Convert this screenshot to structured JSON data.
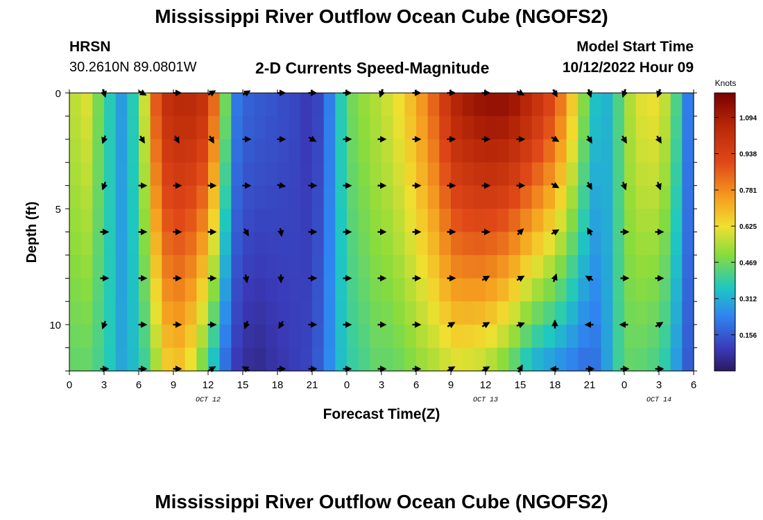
{
  "header": {
    "title": "Mississippi River Outflow Ocean Cube (NGOFS2)",
    "station_name": "HRSN",
    "station_coords": "30.2610N  89.0801W",
    "subtitle": "2-D Currents Speed-Magnitude",
    "model_start_label": "Model Start Time",
    "model_start_value": "10/12/2022 Hour 09"
  },
  "footer": {
    "title": "Mississippi River Outflow Ocean Cube (NGOFS2)"
  },
  "chart_data": {
    "type": "heatmap",
    "title": "2-D Currents Speed-Magnitude",
    "xlabel": "Forecast Time(Z)",
    "ylabel": "Depth (ft)",
    "x_range_hours": [
      0,
      54
    ],
    "y_range_ft": [
      0,
      12
    ],
    "y_reversed": true,
    "x_ticks": [
      "0",
      "3",
      "6",
      "9",
      "12",
      "15",
      "18",
      "21",
      "0",
      "3",
      "6",
      "9",
      "12",
      "15",
      "18",
      "21",
      "0",
      "3",
      "6"
    ],
    "y_ticks": [
      "0",
      "5",
      "10"
    ],
    "date_labels": [
      {
        "text": "OCT 12",
        "hour": 12
      },
      {
        "text": "OCT 13",
        "hour": 36
      },
      {
        "text": "OCT 14",
        "hour": 51
      }
    ],
    "colorbar": {
      "label": "Knots",
      "min": 0,
      "max": 1.2,
      "ticks": [
        "1.094",
        "0.938",
        "0.781",
        "0.625",
        "0.469",
        "0.312",
        "0.156"
      ],
      "tick_values": [
        1.094,
        0.938,
        0.781,
        0.625,
        0.469,
        0.312,
        0.156
      ]
    },
    "speed_profile_hours": [
      0,
      1.5,
      3,
      4.5,
      6,
      7,
      8,
      9,
      10.5,
      12,
      13,
      14,
      15,
      16.5,
      18,
      19.5,
      21,
      22,
      23,
      24,
      25,
      26.5,
      28,
      30,
      32,
      33,
      34,
      36,
      38,
      40,
      42,
      44,
      45,
      46,
      47,
      48,
      49,
      50.5,
      52,
      53,
      54
    ],
    "speed_profile_knots_surface": [
      0.55,
      0.6,
      0.42,
      0.28,
      0.42,
      0.75,
      1.0,
      1.05,
      1.05,
      1.0,
      0.7,
      0.25,
      0.18,
      0.16,
      0.14,
      0.12,
      0.08,
      0.15,
      0.3,
      0.45,
      0.5,
      0.55,
      0.6,
      0.72,
      0.9,
      1.05,
      1.1,
      1.15,
      1.15,
      1.05,
      0.9,
      0.6,
      0.4,
      0.3,
      0.35,
      0.5,
      0.6,
      0.62,
      0.55,
      0.3,
      0.15
    ],
    "speed_profile_knots_bottom": [
      0.45,
      0.45,
      0.4,
      0.3,
      0.35,
      0.45,
      0.6,
      0.7,
      0.6,
      0.4,
      0.25,
      0.12,
      0.06,
      0.05,
      0.08,
      0.1,
      0.12,
      0.2,
      0.3,
      0.38,
      0.4,
      0.45,
      0.45,
      0.5,
      0.55,
      0.58,
      0.58,
      0.55,
      0.45,
      0.3,
      0.25,
      0.2,
      0.18,
      0.22,
      0.35,
      0.45,
      0.45,
      0.42,
      0.35,
      0.2,
      0.12
    ],
    "vectors": {
      "hours": [
        3,
        6.3,
        9.3,
        12.3,
        15.3,
        18.3,
        21,
        24,
        27,
        30,
        33,
        36,
        39,
        42,
        45,
        48,
        51
      ],
      "depths_ft": [
        0,
        2,
        4,
        6,
        8,
        10,
        12
      ],
      "directions_deg": [
        [
          160,
          120,
          90,
          60,
          60,
          90,
          90,
          90,
          200,
          90,
          90,
          90,
          120,
          150,
          160,
          200,
          200
        ],
        [
          200,
          150,
          150,
          150,
          90,
          90,
          120,
          90,
          90,
          90,
          90,
          90,
          90,
          120,
          150,
          150,
          150
        ],
        [
          200,
          90,
          90,
          90,
          90,
          100,
          90,
          90,
          90,
          90,
          90,
          90,
          90,
          120,
          150,
          160,
          160
        ],
        [
          90,
          90,
          90,
          90,
          150,
          170,
          90,
          90,
          90,
          90,
          90,
          90,
          45,
          60,
          330,
          90,
          90
        ],
        [
          90,
          90,
          90,
          90,
          170,
          180,
          90,
          90,
          90,
          90,
          90,
          60,
          60,
          20,
          300,
          90,
          90
        ],
        [
          200,
          90,
          90,
          90,
          200,
          210,
          90,
          90,
          90,
          90,
          60,
          60,
          70,
          0,
          270,
          270,
          60
        ],
        [
          90,
          90,
          90,
          60,
          300,
          90,
          90,
          90,
          90,
          90,
          60,
          60,
          30,
          270,
          90,
          90,
          90
        ]
      ]
    }
  }
}
